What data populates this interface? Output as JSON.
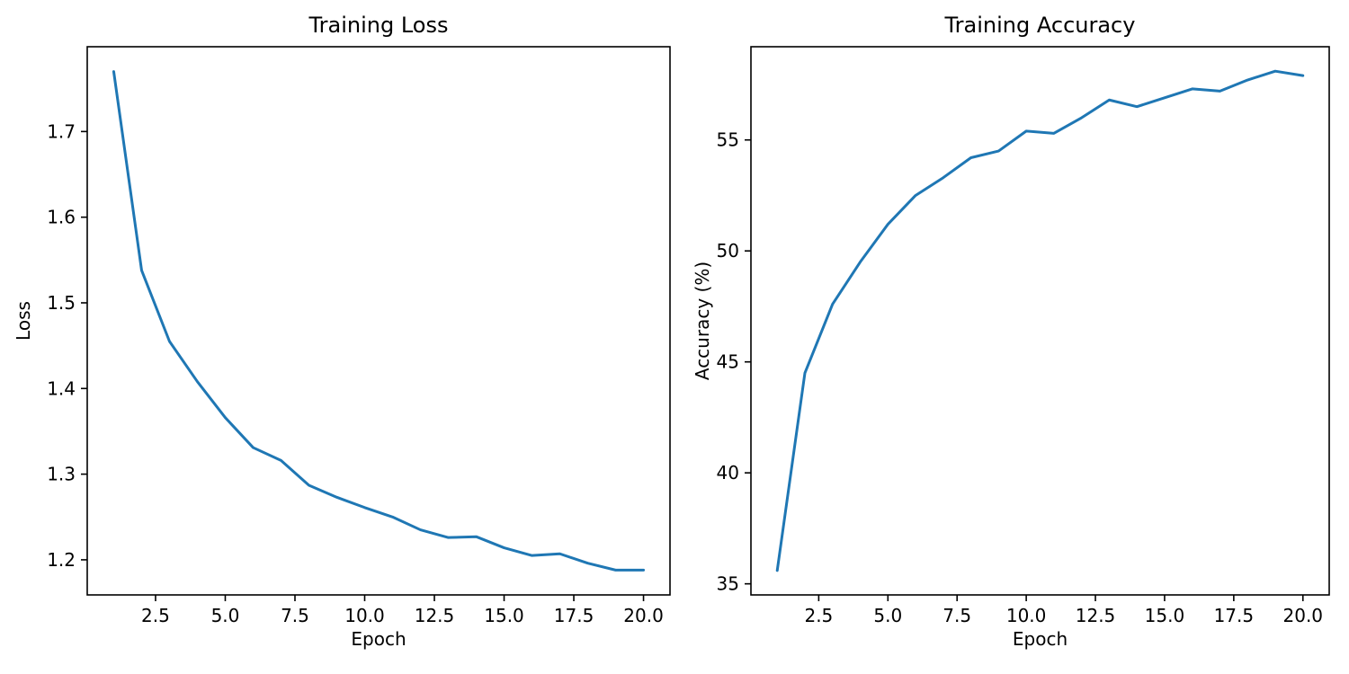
{
  "figure": {
    "background": "#ffffff",
    "line_color": "#1f77b4",
    "axis_color": "#000000",
    "text_color": "#000000"
  },
  "chart_data": [
    {
      "type": "line",
      "title": "Training Loss",
      "xlabel": "Epoch",
      "ylabel": "Loss",
      "x": [
        1,
        2,
        3,
        4,
        5,
        6,
        7,
        8,
        9,
        10,
        11,
        12,
        13,
        14,
        15,
        16,
        17,
        18,
        19,
        20
      ],
      "values": [
        1.77,
        1.538,
        1.455,
        1.408,
        1.366,
        1.331,
        1.316,
        1.287,
        1.273,
        1.261,
        1.25,
        1.235,
        1.226,
        1.227,
        1.214,
        1.205,
        1.207,
        1.196,
        1.188,
        1.188
      ],
      "xlim": [
        0.05,
        20.95
      ],
      "ylim": [
        1.159,
        1.799
      ],
      "xticks": [
        2.5,
        5,
        7.5,
        10,
        12.5,
        15,
        17.5,
        20
      ],
      "xtick_labels": [
        "2.5",
        "5.0",
        "7.5",
        "10.0",
        "12.5",
        "15.0",
        "17.5",
        "20.0"
      ],
      "yticks": [
        1.2,
        1.3,
        1.4,
        1.5,
        1.6,
        1.7
      ],
      "ytick_labels": [
        "1.2",
        "1.3",
        "1.4",
        "1.5",
        "1.6",
        "1.7"
      ],
      "grid": false,
      "legend": null
    },
    {
      "type": "line",
      "title": "Training Accuracy",
      "xlabel": "Epoch",
      "ylabel": "Accuracy (%)",
      "x": [
        1,
        2,
        3,
        4,
        5,
        6,
        7,
        8,
        9,
        10,
        11,
        12,
        13,
        14,
        15,
        16,
        17,
        18,
        19,
        20
      ],
      "values": [
        35.6,
        44.5,
        47.6,
        49.5,
        51.2,
        52.5,
        53.3,
        54.2,
        54.5,
        55.4,
        55.3,
        56.0,
        56.8,
        56.5,
        56.9,
        57.3,
        57.2,
        57.7,
        58.1,
        57.9
      ],
      "xlim": [
        0.05,
        20.95
      ],
      "ylim": [
        34.5,
        59.2
      ],
      "xticks": [
        2.5,
        5,
        7.5,
        10,
        12.5,
        15,
        17.5,
        20
      ],
      "xtick_labels": [
        "2.5",
        "5.0",
        "7.5",
        "10.0",
        "12.5",
        "15.0",
        "17.5",
        "20.0"
      ],
      "yticks": [
        35,
        40,
        45,
        50,
        55
      ],
      "ytick_labels": [
        "35",
        "40",
        "45",
        "50",
        "55"
      ],
      "grid": false,
      "legend": null
    }
  ]
}
